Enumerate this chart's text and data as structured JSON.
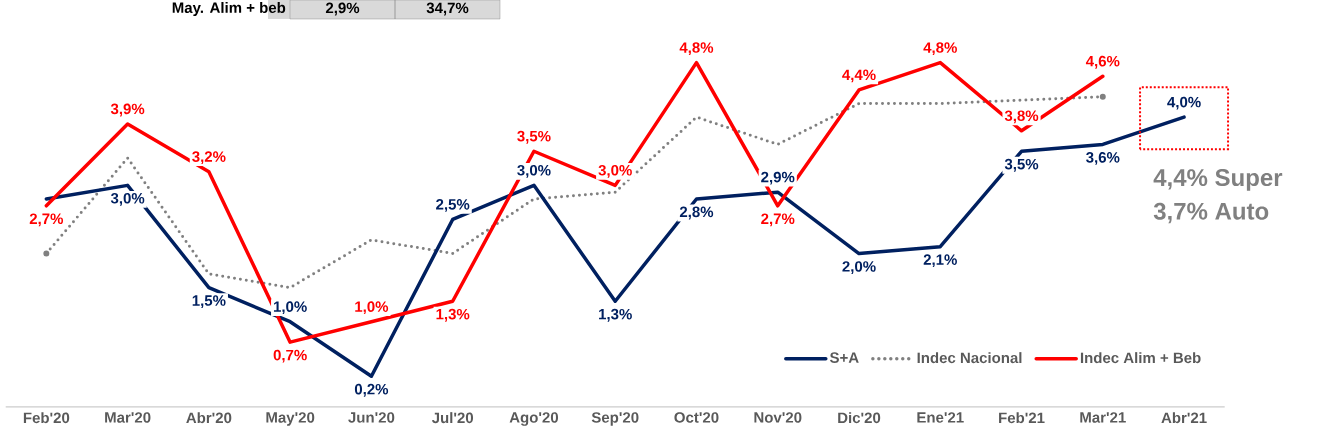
{
  "chart_data": {
    "type": "line",
    "categories": [
      "Feb'20",
      "Mar'20",
      "Abr'20",
      "May'20",
      "Jun'20",
      "Jul'20",
      "Ago'20",
      "Sep'20",
      "Oct'20",
      "Nov'20",
      "Dic'20",
      "Ene'21",
      "Feb'21",
      "Mar'21",
      "Abr'21"
    ],
    "series": [
      {
        "name": "S+A",
        "color": "#002060",
        "line_style": "solid",
        "values": [
          2.8,
          3.0,
          1.5,
          1.0,
          0.2,
          2.5,
          3.0,
          1.3,
          2.8,
          2.9,
          2.0,
          2.1,
          3.5,
          3.6,
          4.0
        ],
        "value_labels": [
          null,
          "3,0%",
          "1,5%",
          "1,0%",
          "0,2%",
          "2,5%",
          "3,0%",
          "1,3%",
          "2,8%",
          "2,9%",
          "2,0%",
          "2,1%",
          "3,5%",
          "3,6%",
          "4,0%"
        ]
      },
      {
        "name": "Indec Nacional",
        "color": "#808080",
        "line_style": "dotted",
        "values": [
          2.0,
          3.4,
          1.7,
          1.5,
          2.2,
          2.0,
          2.8,
          2.9,
          4.0,
          3.6,
          4.2,
          4.2,
          null,
          4.3,
          null
        ]
      },
      {
        "name": "Indec Alim + Beb",
        "color": "#ff0000",
        "line_style": "solid",
        "values": [
          2.7,
          3.9,
          3.2,
          0.7,
          1.0,
          1.3,
          3.5,
          3.0,
          4.8,
          2.7,
          4.4,
          4.8,
          3.8,
          4.6,
          null
        ],
        "value_labels": [
          "2,7%",
          "3,9%",
          "3,2%",
          "0,7%",
          "1,0%",
          "1,3%",
          "3,5%",
          "3,0%",
          "4,8%",
          "2,7%",
          "4,4%",
          "4,8%",
          "3,8%",
          "4,6%",
          null
        ]
      }
    ],
    "tick_labels": "x",
    "marker": "none",
    "legend": "bottom right",
    "annotations": [
      "4,4% Super",
      "3,7% Auto",
      "May. Alim + beb",
      "2,9%",
      "34,7%"
    ]
  }
}
